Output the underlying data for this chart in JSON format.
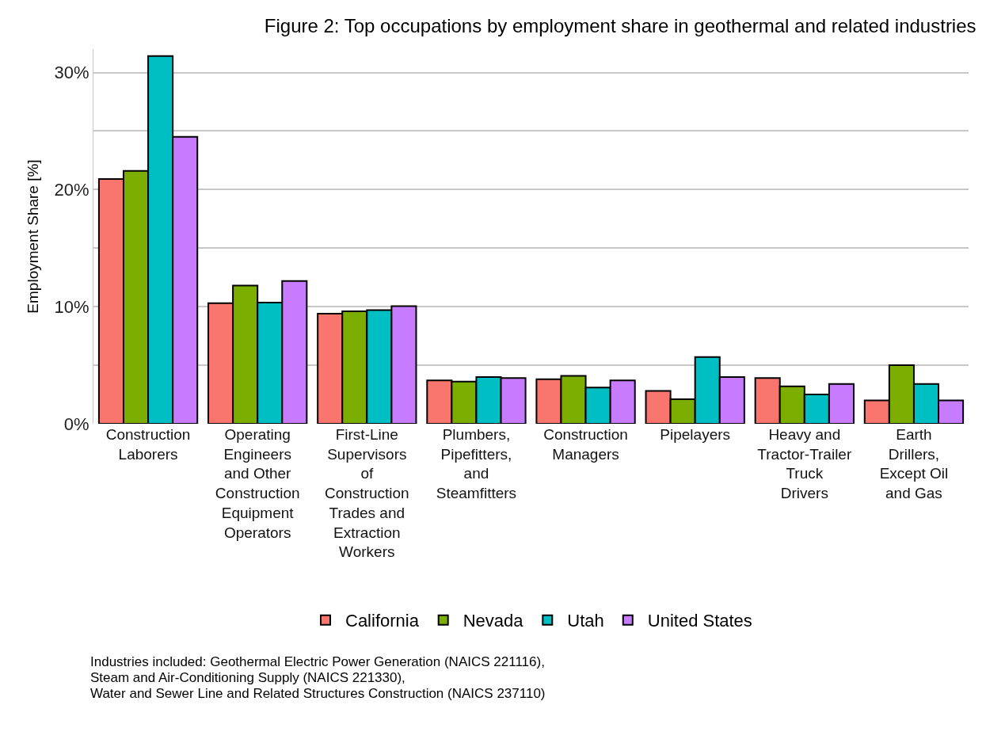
{
  "chart_data": {
    "type": "bar",
    "title": "Figure 2: Top occupations by employment share in geothermal and related industries",
    "ylabel": "Employment Share [%]",
    "categories": [
      "Construction Laborers",
      "Operating Engineers and Other Construction Equipment Operators",
      "First-Line Supervisors of Construction Trades and Extraction Workers",
      "Plumbers, Pipefitters, and Steamfitters",
      "Construction Managers",
      "Pipelayers",
      "Heavy and Tractor-Trailer Truck Drivers",
      "Earth Drillers, Except Oil and Gas"
    ],
    "series": [
      {
        "name": "California",
        "color": "#f8766d",
        "values": [
          20.9,
          10.3,
          9.4,
          3.7,
          3.8,
          2.8,
          3.9,
          2.0
        ]
      },
      {
        "name": "Nevada",
        "color": "#7cae00",
        "values": [
          21.6,
          11.8,
          9.6,
          3.6,
          4.1,
          2.1,
          3.2,
          5.0
        ]
      },
      {
        "name": "Utah",
        "color": "#00bfc4",
        "values": [
          31.4,
          10.35,
          9.7,
          4.0,
          3.1,
          5.7,
          2.5,
          3.4
        ]
      },
      {
        "name": "United States",
        "color": "#c77cff",
        "values": [
          24.5,
          12.2,
          10.05,
          3.9,
          3.7,
          4.0,
          3.4,
          2.0
        ]
      }
    ],
    "ylim": [
      0,
      32
    ],
    "yticks": [
      {
        "value": 0,
        "label": "0%"
      },
      {
        "value": 5,
        "label": null
      },
      {
        "value": 10,
        "label": "10%"
      },
      {
        "value": 15,
        "label": null
      },
      {
        "value": 20,
        "label": "20%"
      },
      {
        "value": 25,
        "label": null
      },
      {
        "value": 30,
        "label": "30%"
      }
    ],
    "grid": "y",
    "legend": "bottom",
    "annotations": [
      "Industries included: Geothermal Electric Power Generation (NAICS 221116),",
      "Steam and Air-Conditioning Supply (NAICS 221330),",
      "Water and Sewer Line and Related Structures Construction (NAICS 237110)"
    ]
  }
}
